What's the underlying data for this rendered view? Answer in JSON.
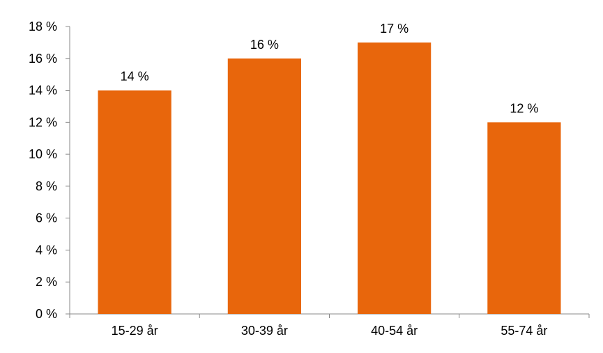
{
  "chart_data": {
    "type": "bar",
    "title": "",
    "xlabel": "",
    "ylabel": "",
    "categories": [
      "15-29 år",
      "30-39 år",
      "40-54 år",
      "55-74 år"
    ],
    "values": [
      14,
      16,
      17,
      12
    ],
    "data_labels": [
      "14 %",
      "16 %",
      "17 %",
      "12 %"
    ],
    "ylim": [
      0,
      18
    ],
    "yticks": [
      0,
      2,
      4,
      6,
      8,
      10,
      12,
      14,
      16,
      18
    ],
    "ytick_labels": [
      "0 %",
      "2 %",
      "4 %",
      "6 %",
      "8 %",
      "10 %",
      "12 %",
      "14 %",
      "16 %",
      "18 %"
    ],
    "grid": false,
    "legend": "none",
    "bar_color": "#E8660C",
    "axis_color": "#888888"
  }
}
